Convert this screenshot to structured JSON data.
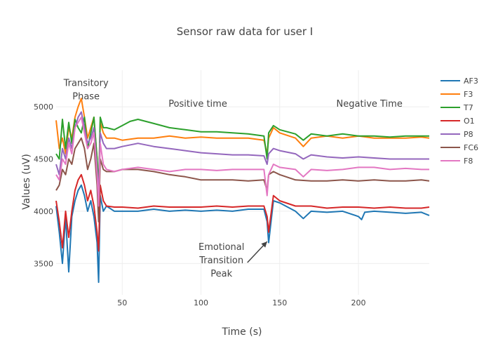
{
  "chart_data": {
    "type": "line",
    "title": "Sensor raw data for user I",
    "xlabel": "Time (s)",
    "ylabel": "Values (uV)",
    "xlim": [
      8,
      245
    ],
    "ylim": [
      3200,
      5350
    ],
    "xticks": [
      50,
      100,
      150,
      200
    ],
    "yticks": [
      3500,
      4000,
      4500,
      5000
    ],
    "grid": true,
    "legend_position": "right",
    "annotations": [
      {
        "lines": [
          "Transitory",
          "Phase"
        ],
        "x": 27,
        "y": 5200
      },
      {
        "lines": [
          "Positive time"
        ],
        "x": 98,
        "y": 5000
      },
      {
        "lines": [
          "Negative Time"
        ],
        "x": 207,
        "y": 5000
      },
      {
        "lines": [
          "Emotional",
          "Transition",
          "Peak"
        ],
        "x": 113,
        "y": 3630,
        "arrow_to": {
          "x": 142,
          "y": 3710
        }
      }
    ],
    "series": [
      {
        "name": "AF3",
        "color": "#1f77b4",
        "x": [
          8,
          10,
          12,
          14,
          16,
          18,
          20,
          22,
          24,
          26,
          28,
          30,
          32,
          34,
          35,
          36,
          38,
          40,
          45,
          50,
          60,
          70,
          80,
          90,
          100,
          110,
          120,
          130,
          140,
          142,
          143,
          146,
          150,
          160,
          165,
          170,
          180,
          190,
          200,
          202,
          204,
          210,
          220,
          230,
          240,
          245
        ],
        "values": [
          4050,
          3800,
          3500,
          3950,
          3420,
          3950,
          4100,
          4200,
          4250,
          4150,
          4000,
          4100,
          3950,
          3700,
          3320,
          4150,
          4000,
          4050,
          4000,
          4000,
          4000,
          4020,
          4000,
          4010,
          4000,
          4010,
          4000,
          4020,
          4020,
          3900,
          3700,
          4100,
          4080,
          4000,
          3930,
          4000,
          3990,
          4000,
          3950,
          3920,
          3990,
          4000,
          3990,
          3980,
          3990,
          3960
        ]
      },
      {
        "name": "F3",
        "color": "#ff7f0e",
        "x": [
          8,
          10,
          12,
          14,
          16,
          18,
          20,
          22,
          24,
          26,
          28,
          30,
          32,
          34,
          35,
          36,
          38,
          40,
          45,
          50,
          60,
          70,
          80,
          90,
          100,
          110,
          120,
          130,
          140,
          142,
          143,
          146,
          150,
          160,
          165,
          170,
          180,
          190,
          200,
          210,
          220,
          230,
          240,
          245
        ],
        "values": [
          4870,
          4600,
          4700,
          4550,
          4800,
          4700,
          4900,
          5000,
          5080,
          4900,
          4700,
          4800,
          4900,
          4500,
          4200,
          4850,
          4750,
          4700,
          4700,
          4680,
          4700,
          4700,
          4720,
          4700,
          4710,
          4700,
          4700,
          4700,
          4680,
          4550,
          4700,
          4800,
          4750,
          4700,
          4620,
          4700,
          4720,
          4700,
          4720,
          4700,
          4700,
          4700,
          4710,
          4700
        ]
      },
      {
        "name": "T7",
        "color": "#2ca02c",
        "x": [
          8,
          10,
          12,
          14,
          16,
          18,
          20,
          22,
          24,
          26,
          28,
          30,
          32,
          34,
          35,
          36,
          38,
          40,
          45,
          50,
          55,
          60,
          70,
          80,
          90,
          100,
          110,
          120,
          130,
          140,
          142,
          143,
          146,
          150,
          160,
          165,
          170,
          180,
          190,
          200,
          210,
          220,
          230,
          240,
          245
        ],
        "values": [
          4550,
          4500,
          4880,
          4600,
          4850,
          4650,
          4880,
          4800,
          4750,
          4900,
          4600,
          4750,
          4900,
          4500,
          4200,
          4900,
          4800,
          4800,
          4780,
          4820,
          4860,
          4880,
          4840,
          4800,
          4780,
          4760,
          4760,
          4750,
          4740,
          4720,
          4500,
          4750,
          4820,
          4780,
          4740,
          4680,
          4740,
          4720,
          4740,
          4720,
          4720,
          4710,
          4720,
          4720,
          4720
        ]
      },
      {
        "name": "O1",
        "color": "#d62728",
        "x": [
          8,
          10,
          12,
          14,
          16,
          18,
          20,
          22,
          24,
          26,
          28,
          30,
          32,
          34,
          35,
          36,
          38,
          40,
          45,
          50,
          60,
          70,
          80,
          90,
          100,
          110,
          120,
          130,
          140,
          142,
          143,
          146,
          150,
          160,
          170,
          180,
          190,
          200,
          210,
          220,
          230,
          240,
          245
        ],
        "values": [
          4100,
          3900,
          3650,
          4000,
          3750,
          4000,
          4200,
          4300,
          4350,
          4250,
          4100,
          4200,
          4050,
          3800,
          3620,
          4250,
          4100,
          4050,
          4040,
          4040,
          4030,
          4050,
          4040,
          4040,
          4040,
          4050,
          4040,
          4050,
          4050,
          3950,
          3800,
          4150,
          4100,
          4050,
          4050,
          4030,
          4040,
          4040,
          4030,
          4040,
          4030,
          4030,
          4040
        ]
      },
      {
        "name": "P8",
        "color": "#9467bd",
        "x": [
          8,
          10,
          12,
          14,
          16,
          18,
          20,
          22,
          24,
          26,
          28,
          30,
          32,
          34,
          35,
          36,
          38,
          40,
          45,
          50,
          60,
          70,
          80,
          90,
          100,
          110,
          120,
          130,
          140,
          142,
          143,
          146,
          150,
          160,
          165,
          170,
          180,
          190,
          200,
          210,
          220,
          230,
          240,
          245
        ],
        "values": [
          4450,
          4350,
          4600,
          4500,
          4700,
          4600,
          4800,
          4900,
          4950,
          4800,
          4650,
          4700,
          4800,
          4400,
          4150,
          4750,
          4650,
          4600,
          4600,
          4620,
          4650,
          4620,
          4600,
          4580,
          4560,
          4550,
          4540,
          4540,
          4530,
          4450,
          4550,
          4600,
          4580,
          4550,
          4500,
          4540,
          4520,
          4510,
          4520,
          4510,
          4500,
          4500,
          4500,
          4500
        ]
      },
      {
        "name": "FC6",
        "color": "#8c564b",
        "x": [
          8,
          10,
          12,
          14,
          16,
          18,
          20,
          22,
          24,
          26,
          28,
          30,
          32,
          34,
          35,
          36,
          38,
          40,
          45,
          50,
          60,
          70,
          80,
          90,
          100,
          110,
          120,
          130,
          140,
          142,
          143,
          146,
          150,
          160,
          170,
          180,
          190,
          200,
          210,
          220,
          230,
          240,
          245
        ],
        "values": [
          4200,
          4250,
          4400,
          4350,
          4500,
          4450,
          4600,
          4650,
          4700,
          4600,
          4400,
          4500,
          4650,
          4250,
          3900,
          4500,
          4400,
          4380,
          4380,
          4400,
          4400,
          4380,
          4350,
          4330,
          4300,
          4300,
          4300,
          4290,
          4300,
          4200,
          4350,
          4380,
          4350,
          4300,
          4290,
          4290,
          4300,
          4290,
          4300,
          4290,
          4290,
          4300,
          4290
        ]
      },
      {
        "name": "F8",
        "color": "#e377c2",
        "x": [
          8,
          10,
          12,
          14,
          16,
          18,
          20,
          22,
          24,
          26,
          28,
          30,
          32,
          34,
          35,
          36,
          38,
          40,
          45,
          50,
          60,
          70,
          80,
          90,
          100,
          110,
          120,
          130,
          140,
          142,
          143,
          146,
          150,
          160,
          165,
          170,
          180,
          190,
          200,
          210,
          220,
          230,
          240,
          245
        ],
        "values": [
          4350,
          4300,
          4500,
          4450,
          4650,
          4550,
          4800,
          4850,
          4900,
          4750,
          4600,
          4650,
          4750,
          4350,
          4050,
          4650,
          4450,
          4400,
          4380,
          4400,
          4420,
          4400,
          4380,
          4400,
          4400,
          4390,
          4400,
          4400,
          4400,
          4150,
          4350,
          4450,
          4420,
          4400,
          4330,
          4400,
          4390,
          4400,
          4420,
          4420,
          4400,
          4410,
          4400,
          4400
        ]
      }
    ]
  }
}
